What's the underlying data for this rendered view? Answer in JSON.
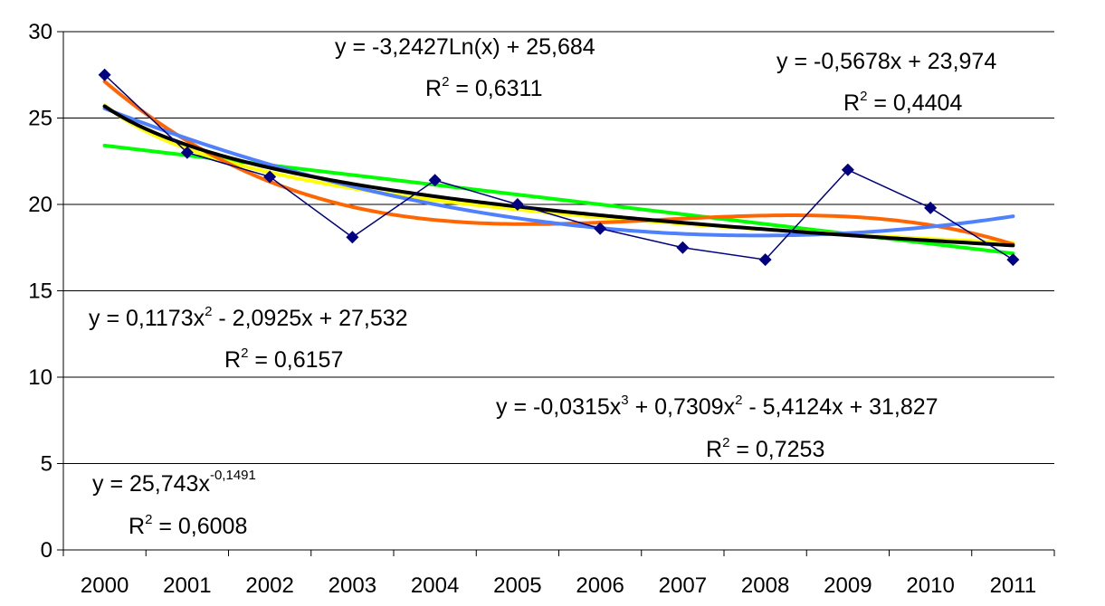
{
  "chart_data": {
    "type": "line",
    "title": "",
    "xlabel": "",
    "ylabel": "",
    "categories": [
      "2000",
      "2001",
      "2002",
      "2003",
      "2004",
      "2005",
      "2006",
      "2007",
      "2008",
      "2009",
      "2010",
      "2011"
    ],
    "ylim": [
      0,
      30
    ],
    "yticks": [
      "0",
      "5",
      "10",
      "15",
      "20",
      "25",
      "30"
    ],
    "grid": true,
    "series": [
      {
        "type": "markers-line",
        "color": "#000080",
        "marker": "diamond",
        "values": [
          27.5,
          23.0,
          21.6,
          18.1,
          21.4,
          20.0,
          18.6,
          17.5,
          16.8,
          22.0,
          19.8,
          16.8
        ]
      },
      {
        "type": "trend",
        "color": "#00FF00",
        "curve": "linear",
        "a": -0.5678,
        "b": 23.974
      },
      {
        "type": "trend",
        "color": "#FFFF00",
        "curve": "power",
        "a": 25.743,
        "b": -0.1491
      },
      {
        "type": "trend",
        "color": "#FF6600",
        "curve": "poly3",
        "c3": -0.0315,
        "c2": 0.7309,
        "c1": -5.4124,
        "c0": 31.827
      },
      {
        "type": "trend",
        "color": "#4F81FF",
        "curve": "poly2",
        "c2": 0.1173,
        "c1": -2.0925,
        "c0": 27.532
      },
      {
        "type": "trend",
        "color": "#000000",
        "curve": "log",
        "a": -3.2427,
        "b": 25.684
      }
    ],
    "annotations": {
      "log": {
        "eq_pre": "y = -3,2427Ln(x) + 25,684",
        "r2_value": " = 0,6311"
      },
      "linear": {
        "eq_pre": "y = -0,5678x + 23,974",
        "r2_value": " = 0,4404"
      },
      "poly2": {
        "eq_a": "y = 0,1173x",
        "eq_a_sup": "2",
        "eq_b": " - 2,0925x + 27,532",
        "r2_value": " = 0,6157"
      },
      "poly3": {
        "eq_a": "y = -0,0315x",
        "eq_a_sup": "3",
        "eq_b": " + 0,7309x",
        "eq_b_sup": "2",
        "eq_c": " - 5,4124x + 31,827",
        "r2_value": " = 0,7253"
      },
      "power": {
        "eq_a": "y = 25,743x",
        "eq_a_sup": "-0,1491",
        "r2_value": " = 0,6008"
      }
    },
    "r2_symbol": "R",
    "r2_sup": "2"
  }
}
